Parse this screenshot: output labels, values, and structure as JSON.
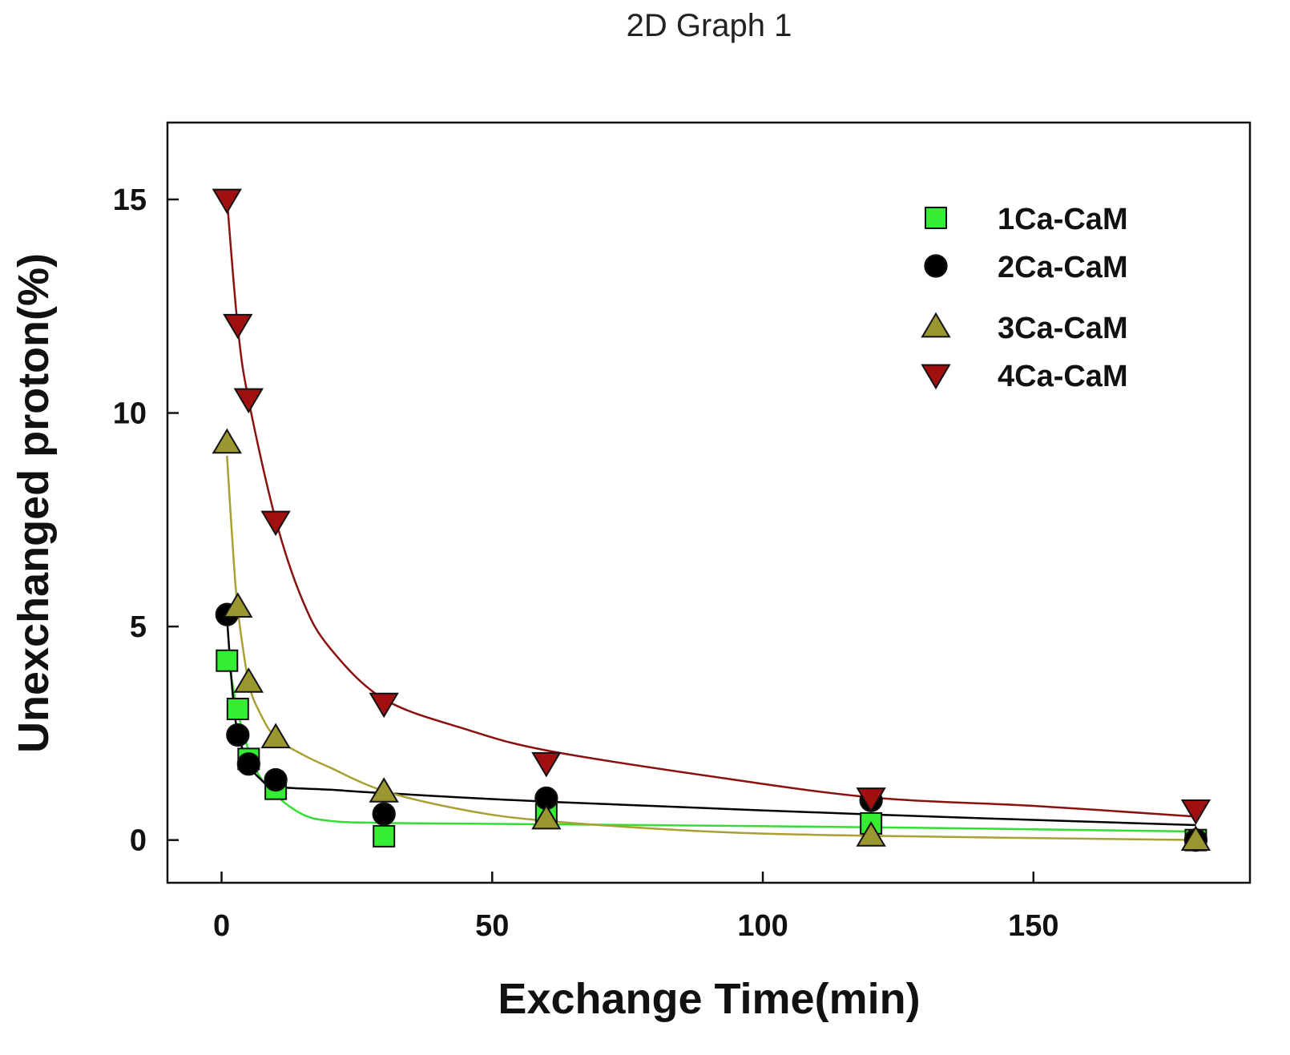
{
  "chart_data": {
    "type": "scatter",
    "title": "2D Graph 1",
    "xlabel": "Exchange Time(min)",
    "ylabel": "Unexchanged proton(%)",
    "xlim": [
      -10,
      190
    ],
    "ylim": [
      -1,
      16.8
    ],
    "xticks": [
      0,
      50,
      100,
      150
    ],
    "yticks": [
      0,
      5,
      10,
      15
    ],
    "grid": false,
    "legend_position": "top-right",
    "series": [
      {
        "name": "1Ca-CaM",
        "marker": "square",
        "color": "#33ee33",
        "line_color": "#33dd33",
        "x": [
          1,
          3,
          5,
          10,
          30,
          60,
          120,
          180
        ],
        "y": [
          4.2,
          3.07,
          1.9,
          1.2,
          0.09,
          0.6,
          0.39,
          0.0
        ],
        "fit": {
          "x": [
            1,
            3,
            5,
            7,
            10,
            15,
            20,
            30,
            60,
            120,
            180
          ],
          "y": [
            4.4,
            3.0,
            2.1,
            1.5,
            1.05,
            0.6,
            0.45,
            0.4,
            0.37,
            0.3,
            0.2
          ]
        }
      },
      {
        "name": "2Ca-CaM",
        "marker": "circle",
        "color": "#000000",
        "line_color": "#000000",
        "x": [
          1,
          3,
          5,
          10,
          30,
          60,
          120,
          180
        ],
        "y": [
          5.28,
          2.46,
          1.78,
          1.41,
          0.61,
          0.98,
          0.93,
          0.0
        ],
        "fit": {
          "x": [
            1,
            2,
            3,
            5,
            7,
            10,
            20,
            30,
            60,
            120,
            180
          ],
          "y": [
            5.2,
            3.5,
            2.5,
            1.8,
            1.45,
            1.25,
            1.18,
            1.1,
            0.9,
            0.6,
            0.35
          ]
        }
      },
      {
        "name": "3Ca-CaM",
        "marker": "triangle-up",
        "color": "#9a9630",
        "line_color": "#a8a030",
        "x": [
          1,
          3,
          5,
          10,
          30,
          60,
          120,
          180
        ],
        "y": [
          9.3,
          5.46,
          3.7,
          2.4,
          1.13,
          0.5,
          0.1,
          0.0
        ],
        "fit": {
          "x": [
            1,
            2,
            3,
            5,
            7,
            10,
            15,
            20,
            30,
            45,
            60,
            90,
            120,
            180
          ],
          "y": [
            9.0,
            7.0,
            5.4,
            3.7,
            3.0,
            2.4,
            2.0,
            1.7,
            1.15,
            0.7,
            0.45,
            0.2,
            0.1,
            0.0
          ]
        }
      },
      {
        "name": "4Ca-CaM",
        "marker": "triangle-down",
        "color": "#a01010",
        "line_color": "#8b1010",
        "x": [
          1,
          3,
          5,
          10,
          30,
          60,
          120,
          180
        ],
        "y": [
          15.0,
          12.07,
          10.33,
          7.46,
          3.2,
          1.81,
          0.98,
          0.7
        ],
        "fit": {
          "x": [
            1,
            3,
            5,
            10,
            15,
            20,
            30,
            45,
            60,
            90,
            120,
            150,
            180
          ],
          "y": [
            15.0,
            12.0,
            10.3,
            7.5,
            5.6,
            4.5,
            3.3,
            2.6,
            2.1,
            1.5,
            1.0,
            0.8,
            0.55
          ]
        }
      }
    ]
  }
}
